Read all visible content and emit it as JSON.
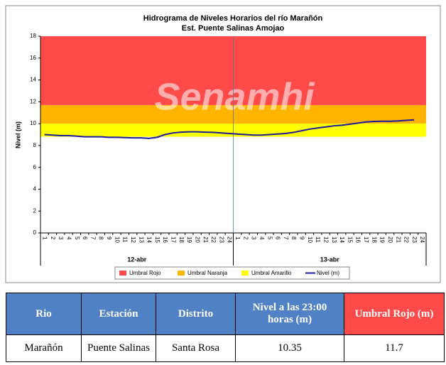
{
  "chart_data": {
    "type": "line",
    "title": "Hidrograma de Niveles Horarios del río Marañón",
    "subtitle": "Est. Puente Salinas Amojao",
    "watermark": "Senamhi",
    "y_label": "Nivel (m)",
    "categories": [
      "1",
      "2",
      "3",
      "4",
      "5",
      "6",
      "7",
      "8",
      "9",
      "10",
      "11",
      "12",
      "13",
      "14",
      "15",
      "16",
      "17",
      "18",
      "19",
      "20",
      "21",
      "22",
      "23",
      "24",
      "1",
      "2",
      "3",
      "4",
      "5",
      "6",
      "7",
      "8",
      "9",
      "10",
      "11",
      "12",
      "13",
      "14",
      "15",
      "16",
      "17",
      "18",
      "19",
      "20",
      "21",
      "22",
      "23",
      "24"
    ],
    "groups": [
      {
        "label": "12-abr",
        "size": 24
      },
      {
        "label": "13-abr",
        "size": 24
      }
    ],
    "thresholds": [
      {
        "name": "Umbral Rojo",
        "color": "#ff4a4a",
        "from": 11.7,
        "to": 18
      },
      {
        "name": "Umbral Naranja",
        "color": "#ffb400",
        "from": 10,
        "to": 11.7
      },
      {
        "name": "Umbral Amarillo",
        "color": "#ffff00",
        "from": 8.8,
        "to": 10
      }
    ],
    "series": [
      {
        "name": "Nivel (m)",
        "color": "#1a1aa0",
        "values": [
          9.0,
          8.95,
          8.9,
          8.9,
          8.85,
          8.8,
          8.8,
          8.8,
          8.75,
          8.75,
          8.72,
          8.7,
          8.7,
          8.65,
          8.75,
          9.0,
          9.15,
          9.22,
          9.25,
          9.25,
          9.22,
          9.2,
          9.15,
          9.1,
          9.05,
          9.0,
          8.95,
          8.95,
          9.0,
          9.05,
          9.1,
          9.2,
          9.35,
          9.5,
          9.6,
          9.7,
          9.8,
          9.85,
          9.95,
          10.05,
          10.15,
          10.2,
          10.22,
          10.22,
          10.25,
          10.3,
          10.35,
          null
        ]
      }
    ],
    "ylim": [
      0,
      18
    ],
    "yticks": [
      0,
      2,
      4,
      6,
      8,
      10,
      12,
      14,
      16,
      18
    ]
  },
  "table": {
    "header": [
      "Rio",
      "Estación",
      "Distrito",
      "Nivel a las 23:00 horas (m)",
      "Umbral Rojo (m)"
    ],
    "rows": [
      [
        "Marañón",
        "Puente Salinas",
        "Santa Rosa",
        "10.35",
        "11.7"
      ]
    ]
  }
}
